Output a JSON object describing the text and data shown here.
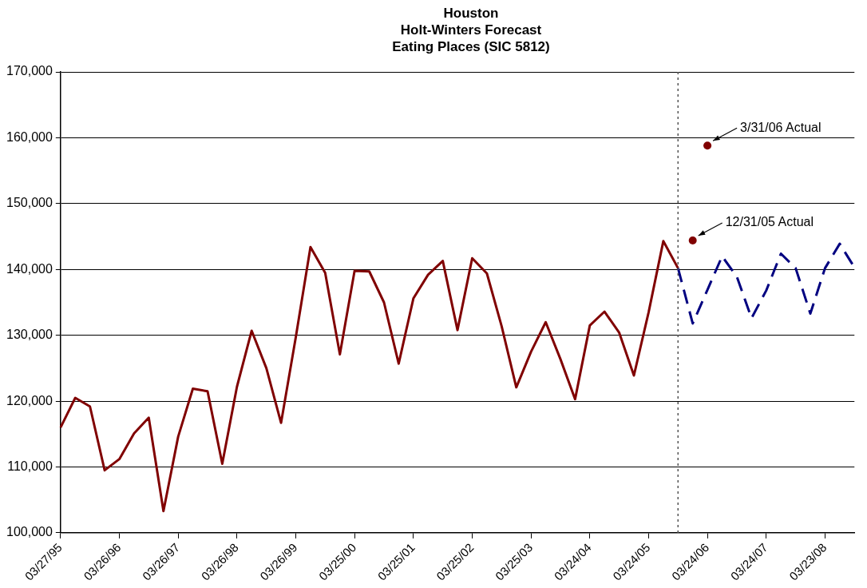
{
  "chart_data": {
    "type": "line",
    "title": "Houston\nHolt-Winters Forecast\nEating Places (SIC 5812)",
    "categories": [
      "03/27/95",
      null,
      null,
      null,
      "03/26/96",
      null,
      null,
      null,
      "03/26/97",
      null,
      null,
      null,
      "03/26/98",
      null,
      null,
      null,
      "03/26/99",
      null,
      null,
      null,
      "03/25/00",
      null,
      null,
      null,
      "03/25/01",
      null,
      null,
      null,
      "03/25/02",
      null,
      null,
      null,
      "03/25/03",
      null,
      null,
      null,
      "03/24/04",
      null,
      null,
      null,
      "03/24/05",
      null,
      null,
      null,
      "03/24/06",
      null,
      null,
      null,
      "03/24/07",
      null,
      null,
      null,
      "03/23/08",
      null,
      null
    ],
    "series": [
      {
        "color": "#800000",
        "line_style": "solid",
        "values": [
          116000,
          120500,
          119200,
          109500,
          111200,
          115100,
          117500,
          103300,
          114600,
          121900,
          121500,
          110500,
          122200,
          130700,
          125000,
          116700,
          129700,
          143400,
          139500,
          127100,
          139800,
          139700,
          135000,
          125700,
          135600,
          139200,
          141300,
          130800,
          141700,
          139400,
          131400,
          122100,
          127500,
          132000,
          126400,
          120300,
          131500,
          133600,
          130400,
          123900,
          133500,
          144300,
          140200,
          null,
          null,
          null,
          null,
          null,
          null,
          null,
          null,
          null,
          null,
          null,
          null
        ]
      },
      {
        "color": "#000080",
        "line_style": "dashed",
        "values": [
          null,
          null,
          null,
          null,
          null,
          null,
          null,
          null,
          null,
          null,
          null,
          null,
          null,
          null,
          null,
          null,
          null,
          null,
          null,
          null,
          null,
          null,
          null,
          null,
          null,
          null,
          null,
          null,
          null,
          null,
          null,
          null,
          null,
          null,
          null,
          null,
          null,
          null,
          null,
          null,
          null,
          null,
          140200,
          131800,
          136900,
          142000,
          138900,
          132600,
          136800,
          142400,
          140200,
          133300,
          140200,
          143900,
          140300
        ]
      },
      {
        "type": "scatter",
        "color": "#800000",
        "marker": "circle",
        "values": [
          null,
          null,
          null,
          null,
          null,
          null,
          null,
          null,
          null,
          null,
          null,
          null,
          null,
          null,
          null,
          null,
          null,
          null,
          null,
          null,
          null,
          null,
          null,
          null,
          null,
          null,
          null,
          null,
          null,
          null,
          null,
          null,
          null,
          null,
          null,
          null,
          null,
          null,
          null,
          null,
          null,
          null,
          null,
          144400,
          158800,
          null,
          null,
          null,
          null,
          null,
          null,
          null,
          null,
          null,
          null
        ]
      }
    ],
    "ylim": [
      100000,
      170000
    ],
    "yticks": [
      {
        "value": 100000,
        "label": "100,000"
      },
      {
        "value": 110000,
        "label": "110,000"
      },
      {
        "value": 120000,
        "label": "120,000"
      },
      {
        "value": 130000,
        "label": "130,000"
      },
      {
        "value": 140000,
        "label": "140,000"
      },
      {
        "value": 150000,
        "label": "150,000"
      },
      {
        "value": 160000,
        "label": "160,000"
      },
      {
        "value": 170000,
        "label": "170,000"
      }
    ],
    "grid": "y",
    "legend": false,
    "marker": "none",
    "annotations": [
      "12/31/05 Actual",
      "3/31/06 Actual"
    ]
  }
}
